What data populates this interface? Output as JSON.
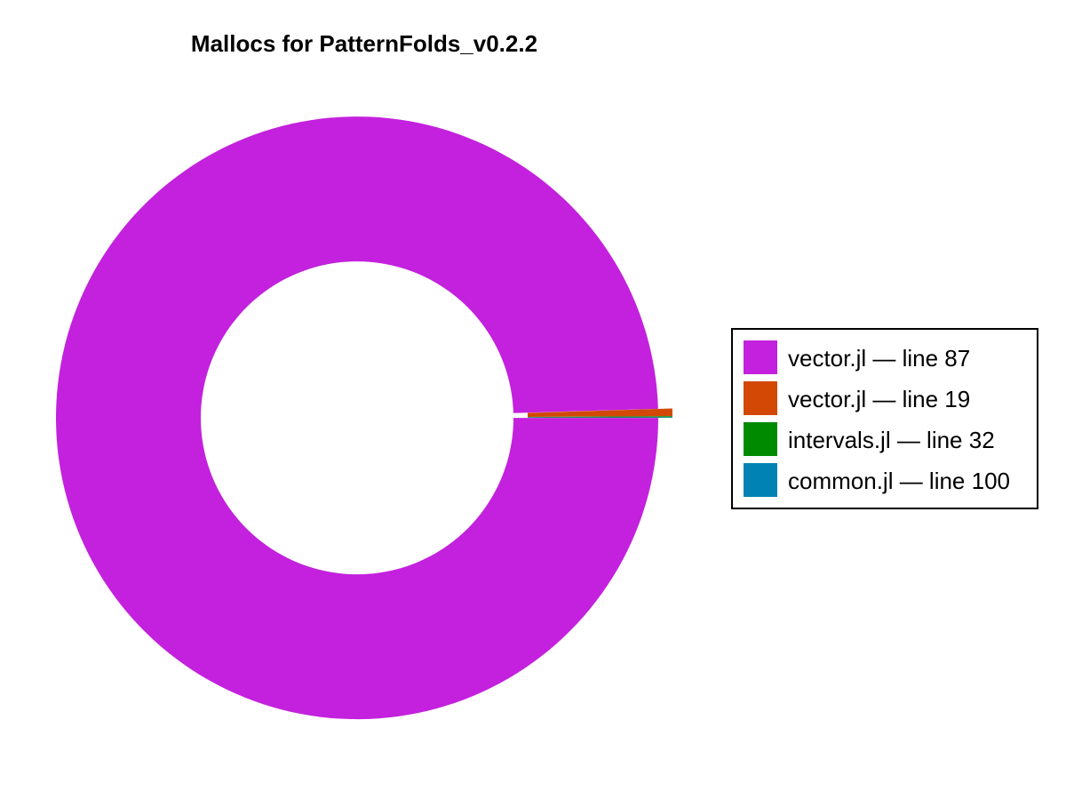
{
  "chart_data": {
    "type": "pie",
    "title": "Mallocs for PatternFolds_v0.2.2",
    "donut": true,
    "legend_position": "right",
    "slices": [
      {
        "label": "vector.jl — line 87",
        "value": 98.8,
        "color": "#c321dd"
      },
      {
        "label": "vector.jl — line 19",
        "value": 0.4,
        "color": "#d24804"
      },
      {
        "label": "intervals.jl — line 32",
        "value": 0.05,
        "color": "#008a00"
      },
      {
        "label": "common.jl — line 100",
        "value": 0.03,
        "color": "#0082b4"
      }
    ]
  }
}
